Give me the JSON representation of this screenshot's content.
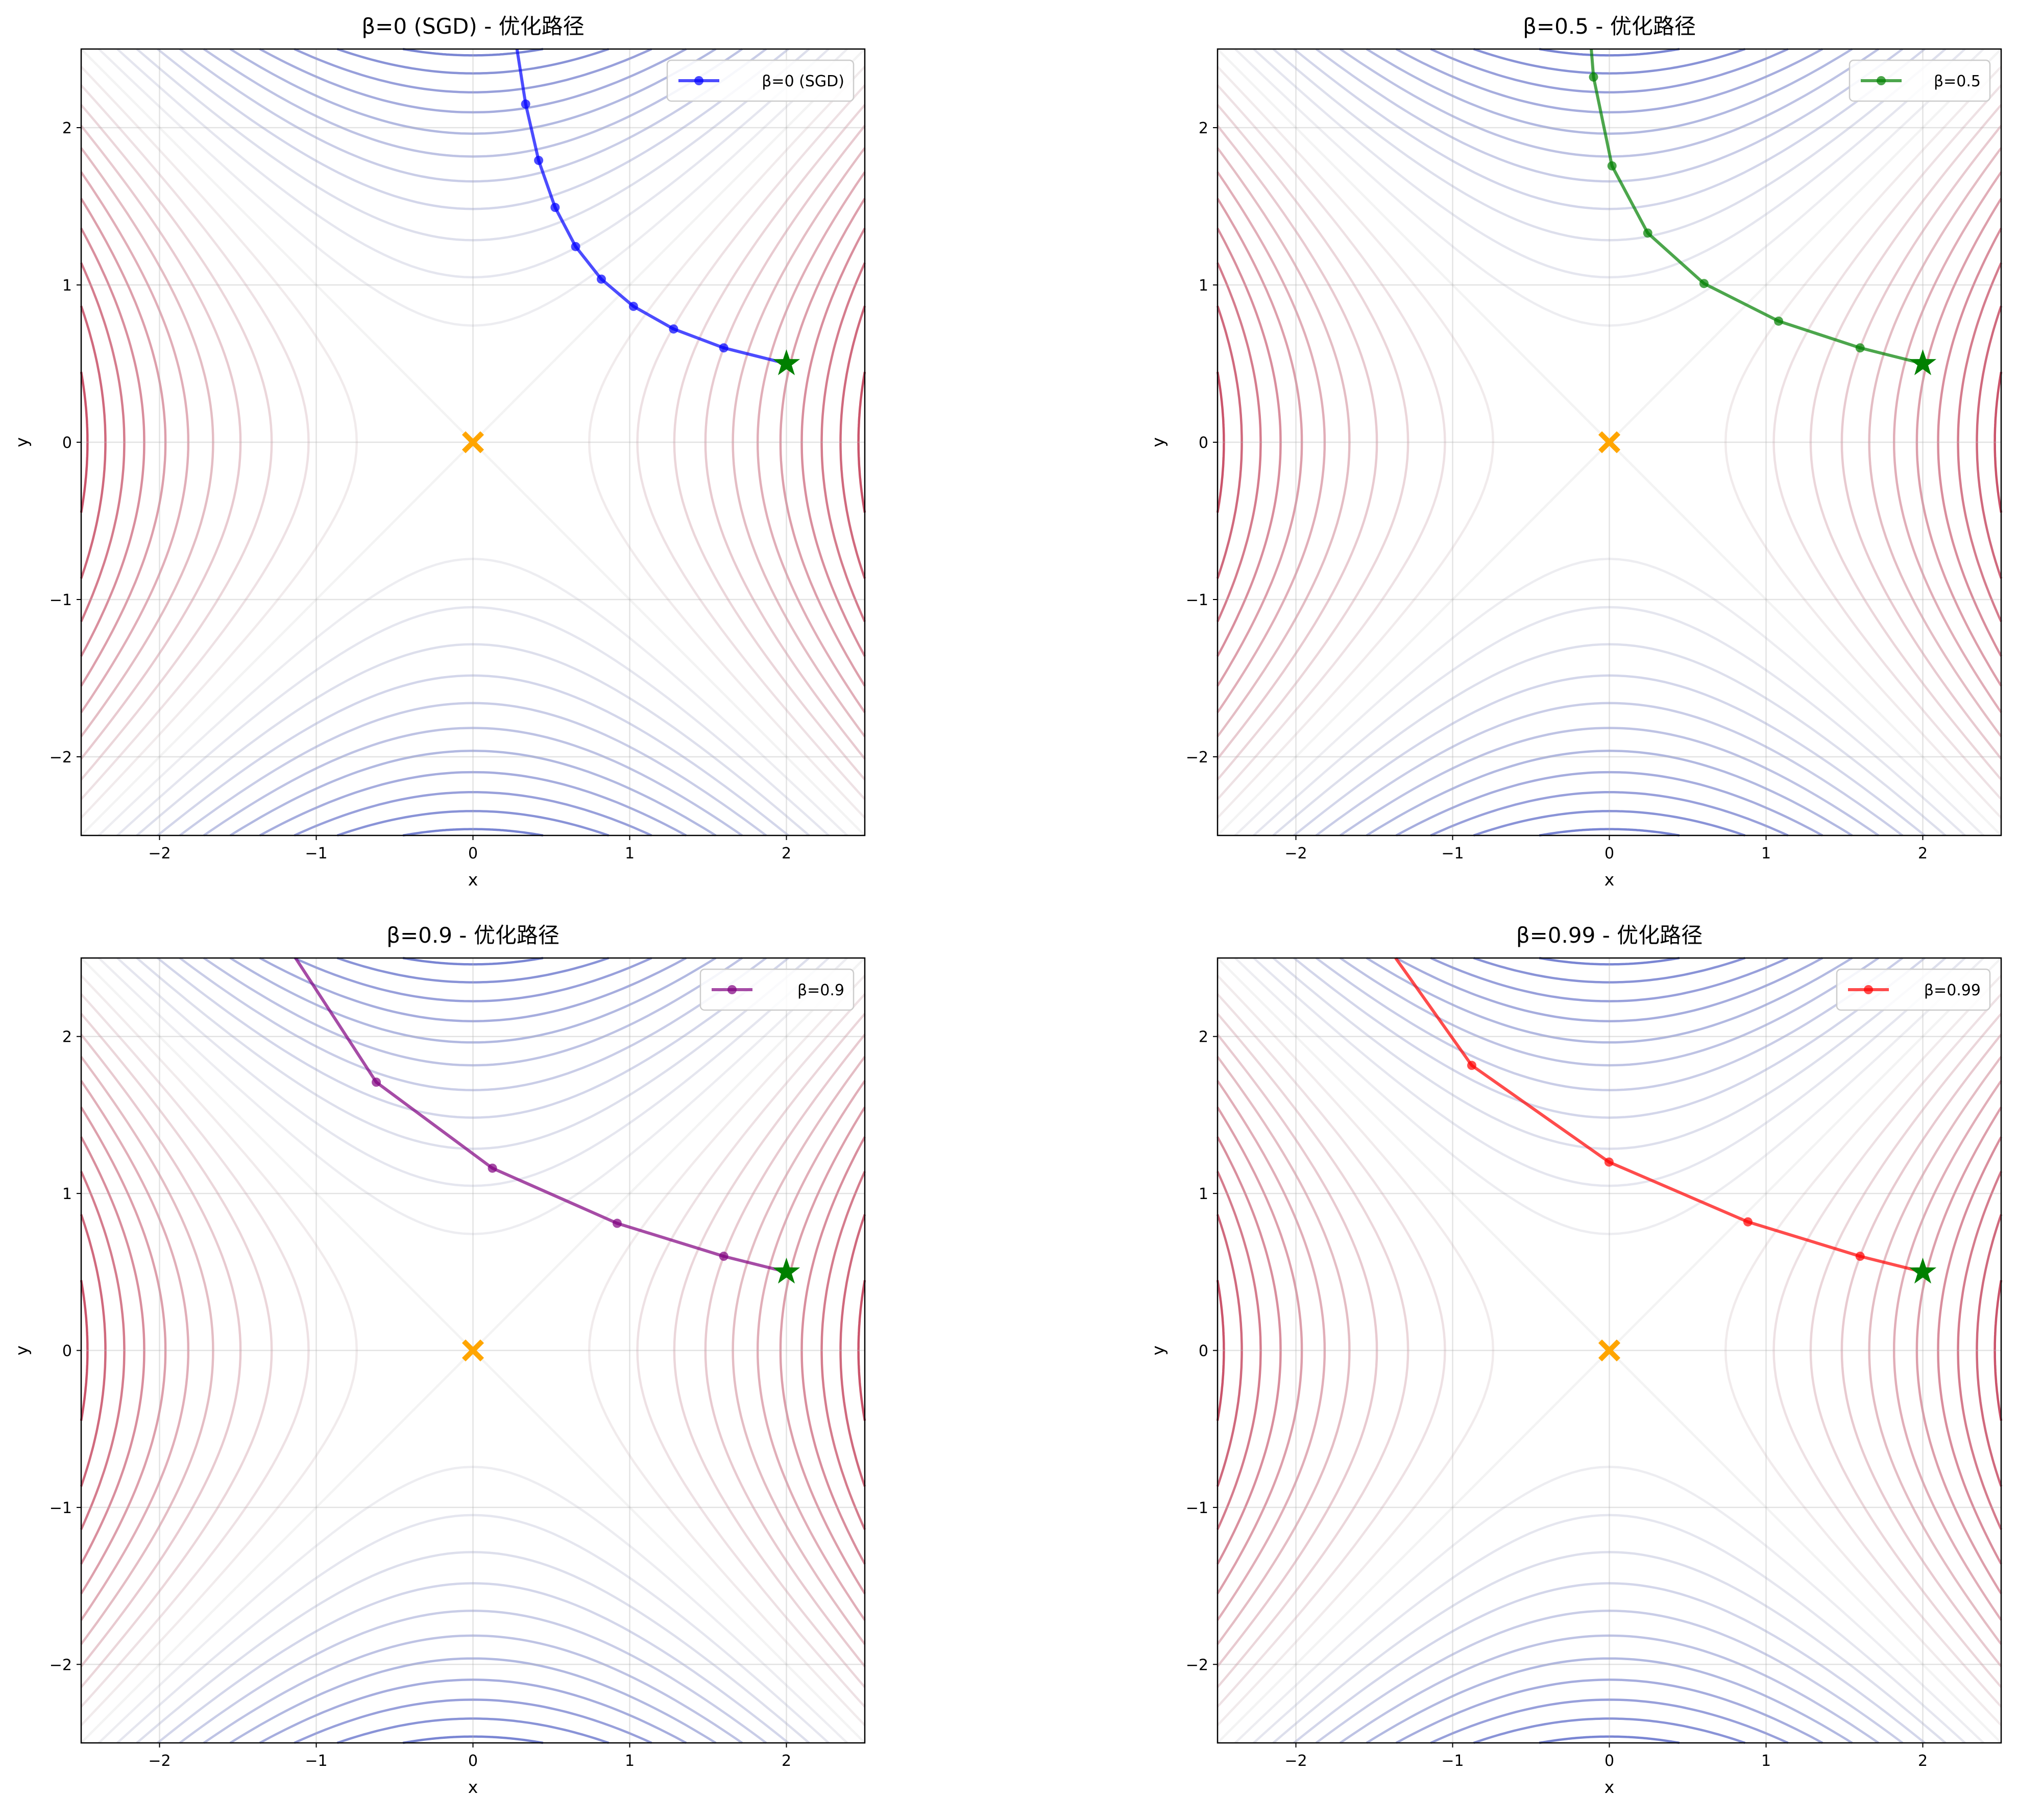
{
  "chart_data": [
    {
      "type": "line",
      "title": "β=0 (SGD) - 优化路径",
      "xlabel": "x",
      "ylabel": "y",
      "xlim": [
        -2.5,
        2.5
      ],
      "ylim": [
        -2.5,
        2.5
      ],
      "xticks": [
        -2,
        -1,
        0,
        1,
        2
      ],
      "yticks": [
        -2,
        -1,
        0,
        1,
        2
      ],
      "xtick_labels": [
        "−2",
        "−1",
        "0",
        "1",
        "2"
      ],
      "ytick_labels": [
        "−2",
        "−1",
        "0",
        "1",
        "2"
      ],
      "grid": true,
      "legend_position": "top-right",
      "series": [
        {
          "name": "β=0 (SGD)",
          "color": "#0000ff",
          "x": [
            2.0,
            1.6,
            1.28,
            1.024,
            0.819,
            0.655,
            0.524,
            0.419,
            0.336,
            0.268
          ],
          "y": [
            0.5,
            0.6,
            0.72,
            0.864,
            1.037,
            1.244,
            1.493,
            1.792,
            2.15,
            2.58
          ]
        }
      ],
      "start": {
        "x": 2.0,
        "y": 0.5,
        "marker": "star",
        "color": "#008000"
      },
      "saddle": {
        "x": 0,
        "y": 0,
        "marker": "x",
        "color": "#ffa500"
      }
    },
    {
      "type": "line",
      "title": "β=0.5 - 优化路径",
      "xlabel": "x",
      "ylabel": "y",
      "xlim": [
        -2.5,
        2.5
      ],
      "ylim": [
        -2.5,
        2.5
      ],
      "xticks": [
        -2,
        -1,
        0,
        1,
        2
      ],
      "yticks": [
        -2,
        -1,
        0,
        1,
        2
      ],
      "xtick_labels": [
        "−2",
        "−1",
        "0",
        "1",
        "2"
      ],
      "ytick_labels": [
        "−2",
        "−1",
        "0",
        "1",
        "2"
      ],
      "grid": true,
      "legend_position": "top-right",
      "series": [
        {
          "name": "β=0.5",
          "color": "#008000",
          "x": [
            2.0,
            1.6,
            1.08,
            0.604,
            0.245,
            0.017,
            -0.101,
            -0.16
          ],
          "y": [
            0.5,
            0.6,
            0.77,
            1.009,
            1.33,
            1.757,
            2.322,
            3.05
          ]
        }
      ],
      "start": {
        "x": 2.0,
        "y": 0.5,
        "marker": "star",
        "color": "#008000"
      },
      "saddle": {
        "x": 0,
        "y": 0,
        "marker": "x",
        "color": "#ffa500"
      }
    },
    {
      "type": "line",
      "title": "β=0.9 - 优化路径",
      "xlabel": "x",
      "ylabel": "y",
      "xlim": [
        -2.5,
        2.5
      ],
      "ylim": [
        -2.5,
        2.5
      ],
      "xticks": [
        -2,
        -1,
        0,
        1,
        2
      ],
      "yticks": [
        -2,
        -1,
        0,
        1,
        2
      ],
      "xtick_labels": [
        "−2",
        "−1",
        "0",
        "1",
        "2"
      ],
      "ytick_labels": [
        "−2",
        "−1",
        "0",
        "1",
        "2"
      ],
      "grid": true,
      "legend_position": "top-right",
      "series": [
        {
          "name": "β=0.9",
          "color": "#800080",
          "x": [
            2.0,
            1.6,
            0.92,
            0.124,
            -0.617,
            -1.161
          ],
          "y": [
            0.5,
            0.6,
            0.81,
            1.161,
            1.709,
            2.544
          ]
        }
      ],
      "start": {
        "x": 2.0,
        "y": 0.5,
        "marker": "star",
        "color": "#008000"
      },
      "saddle": {
        "x": 0,
        "y": 0,
        "marker": "x",
        "color": "#ffa500"
      }
    },
    {
      "type": "line",
      "title": "β=0.99 - 优化路径",
      "xlabel": "x",
      "ylabel": "y",
      "xlim": [
        -2.5,
        2.5
      ],
      "ylim": [
        -2.5,
        2.5
      ],
      "xticks": [
        -2,
        -1,
        0,
        1,
        2
      ],
      "yticks": [
        -2,
        -1,
        0,
        1,
        2
      ],
      "xtick_labels": [
        "−2",
        "−1",
        "0",
        "1",
        "2"
      ],
      "ytick_labels": [
        "−2",
        "−1",
        "0",
        "1",
        "2"
      ],
      "grid": true,
      "legend_position": "top-right",
      "series": [
        {
          "name": "β=0.99",
          "color": "#ff0000",
          "x": [
            2.0,
            1.6,
            0.884,
            -0.002,
            -0.878,
            -1.57
          ],
          "y": [
            0.5,
            0.6,
            0.819,
            1.2,
            1.816,
            2.79
          ]
        }
      ],
      "start": {
        "x": 2.0,
        "y": 0.5,
        "marker": "star",
        "color": "#008000"
      },
      "saddle": {
        "x": 0,
        "y": 0,
        "marker": "x",
        "color": "#ffa500"
      }
    }
  ],
  "contour": {
    "function": "x^2 - y^2",
    "level_step": 0.55,
    "level_count_each_side": 11,
    "colormap": "coolwarm"
  }
}
